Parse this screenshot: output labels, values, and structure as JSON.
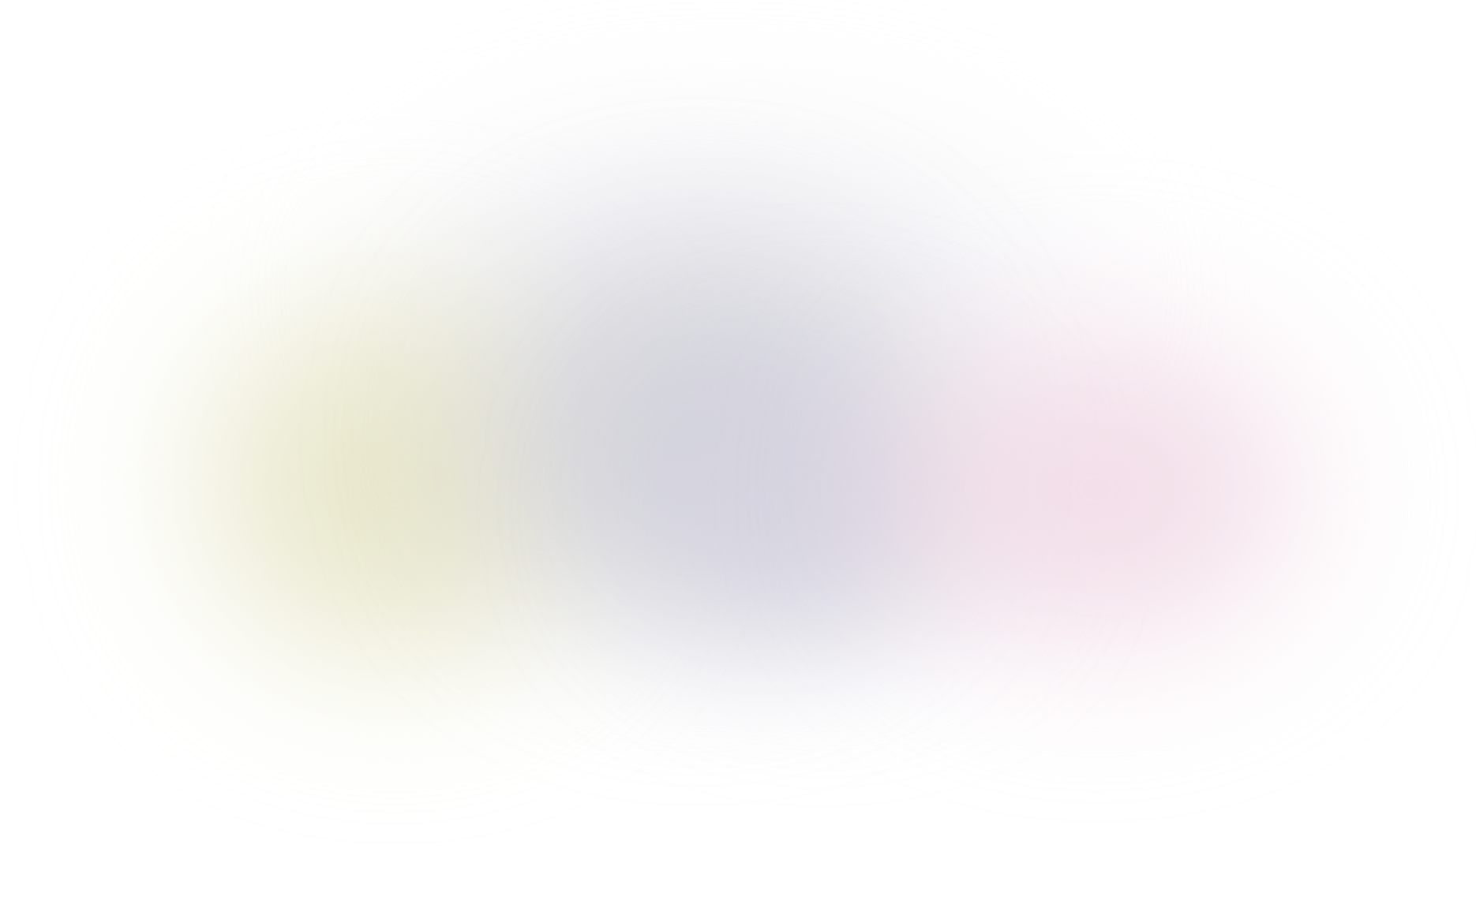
{
  "background": {
    "icon": "gradient-background",
    "base_color": "#ffffff",
    "colors": {
      "yellow": "#e6e4c4",
      "gray": "#d0d0d8",
      "lavender": "#d4d2e0",
      "pink": "#f0d8e4",
      "haze": "#eeeef2"
    }
  }
}
